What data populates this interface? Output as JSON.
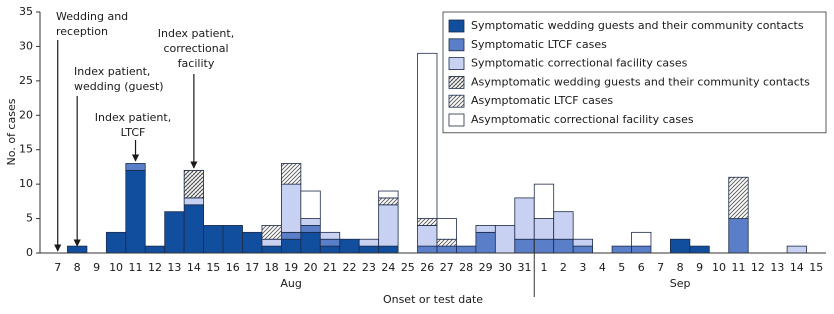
{
  "chart_data": {
    "type": "stacked-bar",
    "x_label": "Onset or test date",
    "y_label": "No. of cases",
    "categories": [
      "7",
      "8",
      "9",
      "10",
      "11",
      "12",
      "13",
      "14",
      "15",
      "16",
      "17",
      "18",
      "19",
      "20",
      "21",
      "22",
      "23",
      "24",
      "25",
      "26",
      "27",
      "28",
      "29",
      "30",
      "31",
      "1",
      "2",
      "3",
      "4",
      "5",
      "6",
      "7",
      "8",
      "9",
      "10",
      "11",
      "12",
      "13",
      "14",
      "15"
    ],
    "month_labels": [
      "Aug",
      "Sep"
    ],
    "ylim": [
      0,
      35
    ],
    "yticks": [
      0,
      5,
      10,
      15,
      20,
      25,
      30,
      35
    ],
    "grid": false,
    "legend": "top-right",
    "series": [
      {
        "name": "Symptomatic wedding guests and their community contacts",
        "color": "#114e9e",
        "hatch": null,
        "values": [
          0,
          1,
          0,
          3,
          12,
          1,
          6,
          7,
          4,
          4,
          3,
          1,
          2,
          3,
          1,
          2,
          1,
          1,
          0,
          0,
          0,
          0,
          0,
          0,
          0,
          0,
          0,
          0,
          0,
          0,
          0,
          0,
          2,
          1,
          0,
          0,
          0,
          0,
          0,
          0
        ]
      },
      {
        "name": "Symptomatic LTCF cases",
        "color": "#5a7fc8",
        "hatch": null,
        "values": [
          0,
          0,
          0,
          0,
          1,
          0,
          0,
          0,
          0,
          0,
          0,
          0,
          1,
          1,
          1,
          0,
          0,
          0,
          0,
          1,
          1,
          1,
          3,
          0,
          2,
          2,
          2,
          1,
          0,
          1,
          1,
          0,
          0,
          0,
          0,
          5,
          0,
          0,
          0,
          0
        ]
      },
      {
        "name": "Symptomatic correctional facility cases",
        "color": "#c8d1f1",
        "hatch": null,
        "values": [
          0,
          0,
          0,
          0,
          0,
          0,
          0,
          1,
          0,
          0,
          0,
          1,
          7,
          1,
          1,
          0,
          1,
          6,
          0,
          3,
          0,
          0,
          1,
          4,
          6,
          3,
          4,
          1,
          0,
          0,
          0,
          0,
          0,
          0,
          0,
          0,
          0,
          0,
          1,
          0
        ]
      },
      {
        "name": "Asymptomatic wedding guests and their community contacts",
        "color": "#ffffff",
        "hatch": "cross",
        "values": [
          0,
          0,
          0,
          0,
          0,
          0,
          0,
          4,
          0,
          0,
          0,
          0,
          0,
          0,
          0,
          0,
          0,
          0,
          0,
          0,
          0,
          0,
          0,
          0,
          0,
          0,
          0,
          0,
          0,
          0,
          0,
          0,
          0,
          0,
          0,
          0,
          0,
          0,
          0,
          0
        ]
      },
      {
        "name": "Asymptomatic LTCF cases",
        "color": "#ffffff",
        "hatch": "diagonal",
        "values": [
          0,
          0,
          0,
          0,
          0,
          0,
          0,
          0,
          0,
          0,
          0,
          2,
          3,
          0,
          0,
          0,
          0,
          1,
          0,
          1,
          1,
          0,
          0,
          0,
          0,
          0,
          0,
          0,
          0,
          0,
          0,
          0,
          0,
          0,
          0,
          6,
          0,
          0,
          0,
          0
        ]
      },
      {
        "name": "Asymptomatic correctional facility cases",
        "color": "#ffffff",
        "hatch": null,
        "values": [
          0,
          0,
          0,
          0,
          0,
          0,
          0,
          0,
          0,
          0,
          0,
          0,
          0,
          4,
          0,
          0,
          0,
          1,
          0,
          24,
          3,
          0,
          0,
          0,
          0,
          5,
          0,
          0,
          0,
          0,
          2,
          0,
          0,
          0,
          0,
          0,
          0,
          0,
          0,
          0
        ]
      }
    ],
    "annotations": [
      {
        "lines": [
          "Wedding and",
          "reception"
        ]
      },
      {
        "lines": [
          "Index patient,",
          "wedding (guest)"
        ]
      },
      {
        "lines": [
          "Index patient,",
          "LTCF"
        ]
      },
      {
        "lines": [
          "Index patient,",
          "correctional",
          "facility"
        ]
      }
    ]
  }
}
